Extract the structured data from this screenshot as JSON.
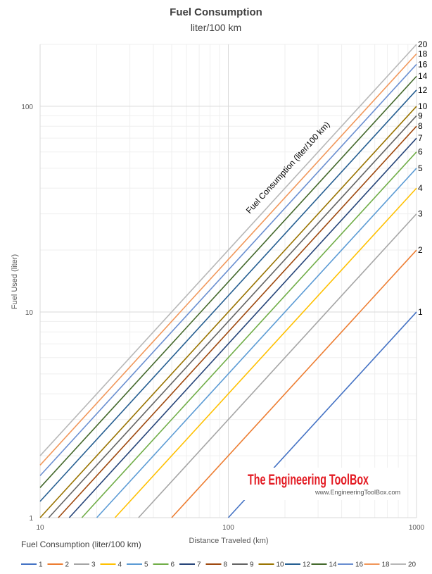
{
  "chart_data": {
    "type": "line",
    "title": "Fuel Consumption",
    "subtitle": "liter/100 km",
    "xlabel": "Distance Traveled (km)",
    "ylabel": "Fuel Used (liter)",
    "x_scale": "log",
    "y_scale": "log",
    "xlim": [
      10,
      1000
    ],
    "ylim": [
      1,
      200
    ],
    "x_ticks": [
      "10",
      "100",
      "1000"
    ],
    "y_ticks": [
      "1",
      "10",
      "100"
    ],
    "grid": true,
    "legend_title": "Fuel Consumption (liter/100 km)",
    "legend_position": "bottom",
    "annotation": "Fuel Consumption (liter/100 km)",
    "x": [
      10,
      1000
    ],
    "series": [
      {
        "name": "1",
        "color": "#4472c4",
        "values": [
          0.1,
          10
        ]
      },
      {
        "name": "2",
        "color": "#ed7d31",
        "values": [
          0.2,
          20
        ]
      },
      {
        "name": "3",
        "color": "#a5a5a5",
        "values": [
          0.3,
          30
        ]
      },
      {
        "name": "4",
        "color": "#ffc000",
        "values": [
          0.4,
          40
        ]
      },
      {
        "name": "5",
        "color": "#5b9bd5",
        "values": [
          0.5,
          50
        ]
      },
      {
        "name": "6",
        "color": "#70ad47",
        "values": [
          0.6,
          60
        ]
      },
      {
        "name": "7",
        "color": "#264478",
        "values": [
          0.7,
          70
        ]
      },
      {
        "name": "8",
        "color": "#9e480e",
        "values": [
          0.8,
          80
        ]
      },
      {
        "name": "9",
        "color": "#636363",
        "values": [
          0.9,
          90
        ]
      },
      {
        "name": "10",
        "color": "#997300",
        "values": [
          1.0,
          100
        ]
      },
      {
        "name": "12",
        "color": "#255e91",
        "values": [
          1.2,
          120
        ]
      },
      {
        "name": "14",
        "color": "#43682b",
        "values": [
          1.4,
          140
        ]
      },
      {
        "name": "16",
        "color": "#698ed0",
        "values": [
          1.6,
          160
        ]
      },
      {
        "name": "18",
        "color": "#f1975a",
        "values": [
          1.8,
          180
        ]
      },
      {
        "name": "20",
        "color": "#b7b7b7",
        "values": [
          2.0,
          200
        ]
      }
    ]
  },
  "watermark": {
    "brand": "The Engineering ToolBox",
    "url": "www.EngineeringToolBox.com"
  }
}
